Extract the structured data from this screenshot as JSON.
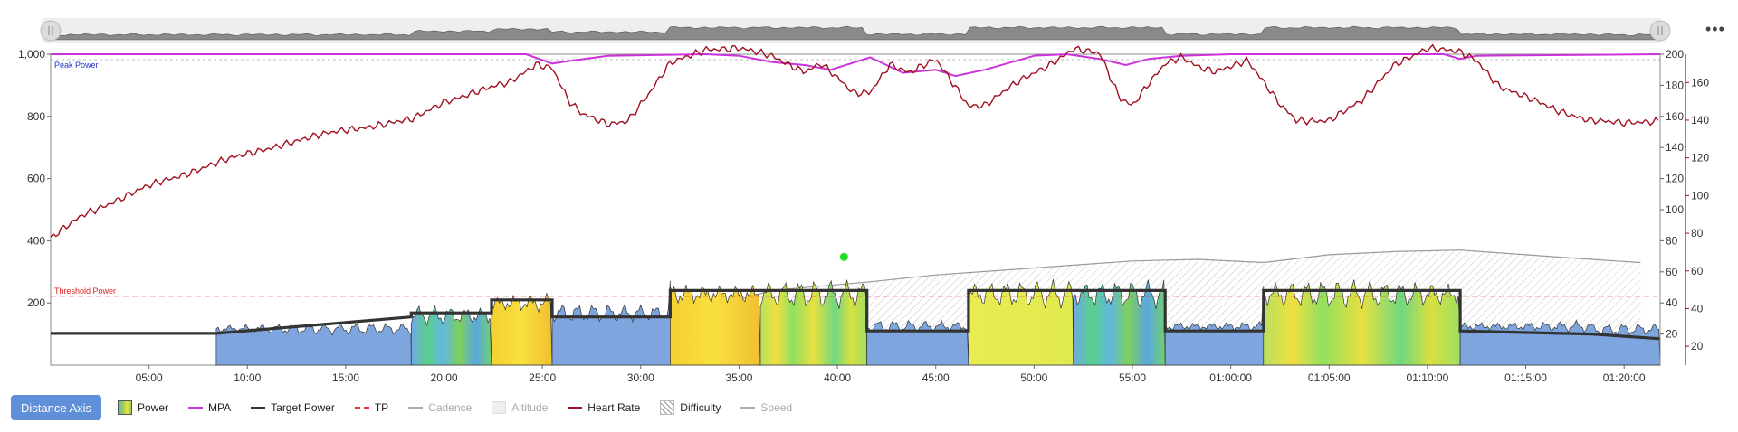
{
  "legend": {
    "axis_button": "Distance Axis",
    "items": [
      {
        "label": "Power",
        "color": "#8fcf5a",
        "style": "power",
        "muted": false
      },
      {
        "label": "MPA",
        "color": "#cc33dd",
        "style": "line",
        "muted": false
      },
      {
        "label": "Target Power",
        "color": "#333333",
        "style": "thick",
        "muted": false
      },
      {
        "label": "TP",
        "color": "#e53935",
        "style": "dash",
        "muted": false
      },
      {
        "label": "Cadence",
        "color": "#aaaaaa",
        "style": "line",
        "muted": true
      },
      {
        "label": "Altitude",
        "color": "#cccccc",
        "style": "box",
        "muted": true
      },
      {
        "label": "Heart Rate",
        "color": "#a01020",
        "style": "line",
        "muted": false
      },
      {
        "label": "Difficulty",
        "color": "#888888",
        "style": "hatch",
        "muted": false
      },
      {
        "label": "Speed",
        "color": "#aaaaaa",
        "style": "line",
        "muted": true
      }
    ]
  },
  "chart_data": {
    "type": "line",
    "annotations": {
      "peak_power": "Peak Power",
      "threshold_power": "Threshold Power"
    },
    "x_ticks": [
      "05:00",
      "10:00",
      "15:00",
      "20:00",
      "25:00",
      "30:00",
      "35:00",
      "40:00",
      "45:00",
      "50:00",
      "55:00",
      "01:00:00",
      "01:05:00",
      "01:10:00",
      "01:15:00",
      "01:20:00"
    ],
    "x_range_seconds": [
      0,
      4910
    ],
    "y_left": {
      "range": [
        0,
        1000
      ],
      "ticks": [
        "200",
        "400",
        "600",
        "800",
        "1,000"
      ]
    },
    "y_right_outer": {
      "range": [
        0,
        200
      ],
      "ticks": [
        "20",
        "40",
        "60",
        "80",
        "100",
        "120",
        "140",
        "160",
        "180",
        "200"
      ]
    },
    "y_right_inner": {
      "range": [
        10,
        175
      ],
      "ticks": [
        "20",
        "40",
        "60",
        "80",
        "100",
        "120",
        "140",
        "160"
      ]
    },
    "threshold_power": 222,
    "peak_power": 1000,
    "target_power": [
      [
        0,
        102
      ],
      [
        505,
        102
      ],
      [
        1100,
        155
      ],
      [
        1100,
        168
      ],
      [
        1345,
        168
      ],
      [
        1345,
        210
      ],
      [
        1530,
        210
      ],
      [
        1530,
        155
      ],
      [
        1890,
        155
      ],
      [
        1890,
        240
      ],
      [
        2490,
        240
      ],
      [
        2490,
        110
      ],
      [
        2800,
        110
      ],
      [
        2800,
        240
      ],
      [
        3400,
        240
      ],
      [
        3400,
        110
      ],
      [
        3700,
        110
      ],
      [
        3700,
        240
      ],
      [
        4300,
        240
      ],
      [
        4300,
        110
      ],
      [
        4700,
        100
      ],
      [
        4910,
        85
      ]
    ],
    "power_intervals": [
      {
        "start": 0,
        "end": 505,
        "zone": "none"
      },
      {
        "start": 505,
        "end": 1100,
        "zone": "blue"
      },
      {
        "start": 1100,
        "end": 1345,
        "zone": "mix-blue"
      },
      {
        "start": 1345,
        "end": 1530,
        "zone": "yellow"
      },
      {
        "start": 1530,
        "end": 1890,
        "zone": "blue"
      },
      {
        "start": 1890,
        "end": 2165,
        "zone": "yellow"
      },
      {
        "start": 2165,
        "end": 2490,
        "zone": "mix-yellow"
      },
      {
        "start": 2490,
        "end": 2800,
        "zone": "blue"
      },
      {
        "start": 2800,
        "end": 3120,
        "zone": "yellow-green"
      },
      {
        "start": 3120,
        "end": 3400,
        "zone": "mix-blue"
      },
      {
        "start": 3400,
        "end": 3700,
        "zone": "blue"
      },
      {
        "start": 3700,
        "end": 4300,
        "zone": "mix-yellow"
      },
      {
        "start": 4300,
        "end": 4910,
        "zone": "blue"
      }
    ],
    "heart_rate": [
      [
        0,
        77
      ],
      [
        100,
        90
      ],
      [
        300,
        105
      ],
      [
        500,
        117
      ],
      [
        700,
        127
      ],
      [
        900,
        135
      ],
      [
        1100,
        140
      ],
      [
        1200,
        150
      ],
      [
        1300,
        155
      ],
      [
        1400,
        160
      ],
      [
        1480,
        170
      ],
      [
        1530,
        168
      ],
      [
        1580,
        150
      ],
      [
        1620,
        143
      ],
      [
        1700,
        138
      ],
      [
        1760,
        140
      ],
      [
        1830,
        155
      ],
      [
        1890,
        170
      ],
      [
        2000,
        178
      ],
      [
        2100,
        178
      ],
      [
        2200,
        174
      ],
      [
        2300,
        166
      ],
      [
        2350,
        170
      ],
      [
        2450,
        154
      ],
      [
        2500,
        155
      ],
      [
        2560,
        170
      ],
      [
        2620,
        165
      ],
      [
        2700,
        172
      ],
      [
        2760,
        158
      ],
      [
        2800,
        148
      ],
      [
        2850,
        148
      ],
      [
        2950,
        160
      ],
      [
        3050,
        170
      ],
      [
        3120,
        178
      ],
      [
        3200,
        175
      ],
      [
        3260,
        152
      ],
      [
        3300,
        148
      ],
      [
        3350,
        160
      ],
      [
        3400,
        170
      ],
      [
        3450,
        173
      ],
      [
        3500,
        168
      ],
      [
        3550,
        166
      ],
      [
        3650,
        172
      ],
      [
        3700,
        160
      ],
      [
        3750,
        148
      ],
      [
        3800,
        140
      ],
      [
        3900,
        140
      ],
      [
        4000,
        150
      ],
      [
        4100,
        170
      ],
      [
        4200,
        178
      ],
      [
        4300,
        176
      ],
      [
        4350,
        172
      ],
      [
        4420,
        158
      ],
      [
        4500,
        152
      ],
      [
        4600,
        145
      ],
      [
        4700,
        140
      ],
      [
        4800,
        138
      ],
      [
        4910,
        140
      ]
    ],
    "mpa": [
      [
        0,
        1000
      ],
      [
        1450,
        1000
      ],
      [
        1530,
        970
      ],
      [
        1560,
        975
      ],
      [
        1700,
        995
      ],
      [
        2000,
        1000
      ],
      [
        2100,
        995
      ],
      [
        2200,
        975
      ],
      [
        2300,
        965
      ],
      [
        2380,
        950
      ],
      [
        2500,
        990
      ],
      [
        2600,
        940
      ],
      [
        2700,
        950
      ],
      [
        2760,
        930
      ],
      [
        2850,
        950
      ],
      [
        3000,
        995
      ],
      [
        3100,
        1000
      ],
      [
        3200,
        985
      ],
      [
        3280,
        965
      ],
      [
        3350,
        985
      ],
      [
        3450,
        995
      ],
      [
        3600,
        1000
      ],
      [
        4250,
        1000
      ],
      [
        4300,
        985
      ],
      [
        4350,
        995
      ],
      [
        4910,
        1000
      ]
    ],
    "difficulty": [
      [
        1530,
        145
      ],
      [
        1890,
        150
      ],
      [
        2200,
        240
      ],
      [
        2500,
        268
      ],
      [
        2700,
        290
      ],
      [
        2900,
        305
      ],
      [
        3100,
        320
      ],
      [
        3300,
        335
      ],
      [
        3500,
        340
      ],
      [
        3700,
        330
      ],
      [
        3900,
        355
      ],
      [
        4100,
        365
      ],
      [
        4300,
        370
      ],
      [
        4500,
        355
      ],
      [
        4700,
        340
      ],
      [
        4850,
        330
      ]
    ],
    "peak_marker_seconds": 2420,
    "peak_marker_value": 348
  }
}
